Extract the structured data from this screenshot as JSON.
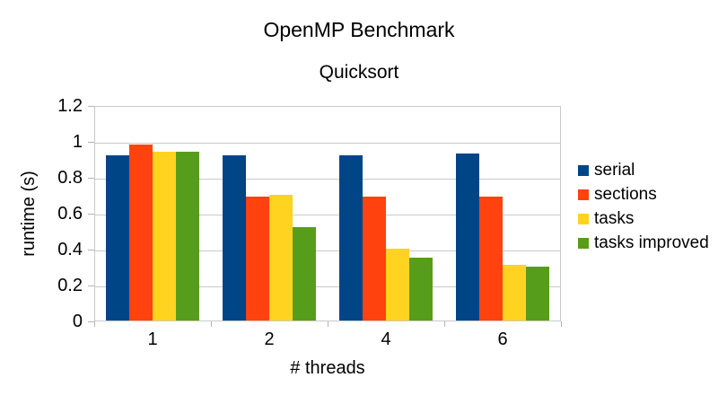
{
  "chart_data": {
    "type": "bar",
    "title": "OpenMP Benchmark",
    "subtitle": "Quicksort",
    "xlabel": "# threads",
    "ylabel": "runtime (s)",
    "categories": [
      "1",
      "2",
      "4",
      "6"
    ],
    "series": [
      {
        "name": "serial",
        "color": "#004586",
        "values": [
          0.92,
          0.92,
          0.92,
          0.93
        ]
      },
      {
        "name": "sections",
        "color": "#FF420E",
        "values": [
          0.98,
          0.69,
          0.69,
          0.69
        ]
      },
      {
        "name": "tasks",
        "color": "#FFD320",
        "values": [
          0.94,
          0.7,
          0.4,
          0.31
        ]
      },
      {
        "name": "tasks improved",
        "color": "#579D1C",
        "values": [
          0.94,
          0.52,
          0.35,
          0.3
        ]
      }
    ],
    "ylim": [
      0,
      1.2
    ],
    "yticks": [
      0,
      0.2,
      0.4,
      0.6,
      0.8,
      1,
      1.2
    ],
    "grid": true,
    "legend_position": "right",
    "colors": {
      "background": "#ffffff",
      "gridline": "#c9c9c9",
      "axis": "#b3b3b3",
      "text": "#000000"
    }
  }
}
